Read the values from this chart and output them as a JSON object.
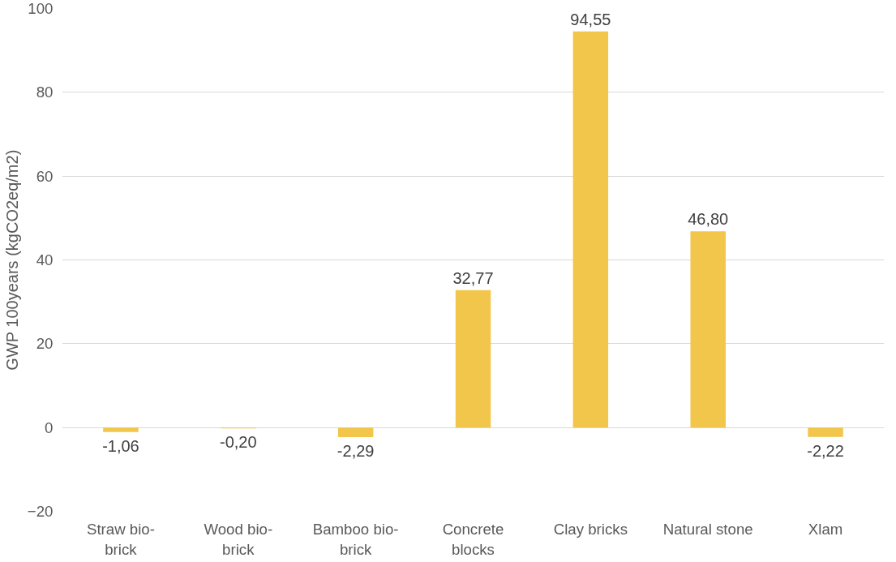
{
  "chart_data": {
    "type": "bar",
    "ylabel": "GWP 100years (kgCO2eq/m2)",
    "categories": [
      "Straw bio-\nbrick",
      "Wood bio-\nbrick",
      "Bamboo bio-\nbrick",
      "Concrete\nblocks",
      "Clay bricks",
      "Natural stone",
      "Xlam"
    ],
    "values": [
      -1.06,
      -0.2,
      -2.29,
      32.77,
      94.55,
      46.8,
      -2.22
    ],
    "value_labels": [
      "-1,06",
      "-0,20",
      "-2,29",
      "32,77",
      "94,55",
      "46,80",
      "-2,22"
    ],
    "color": "#f2c54b",
    "ylim": [
      -20,
      100
    ],
    "yticks": [
      -20,
      0,
      20,
      40,
      60,
      80,
      100
    ],
    "grid": "y"
  }
}
